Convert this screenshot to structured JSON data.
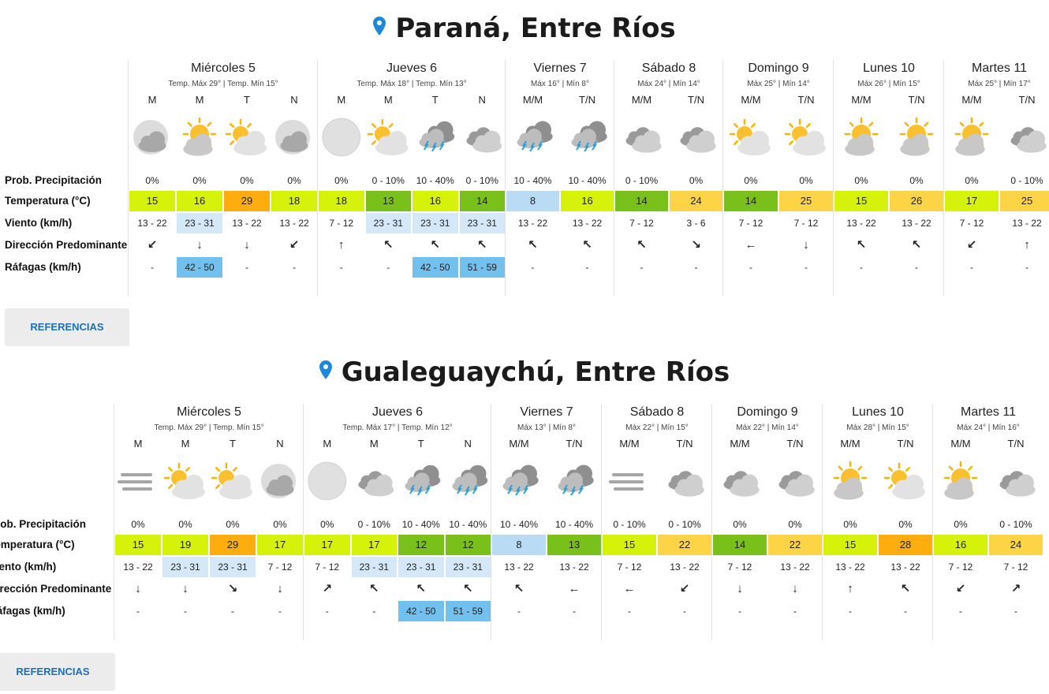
{
  "colors": {
    "pin": "#1e88d8",
    "temp_cool": "#b9dcf4",
    "temp_mild_green": "#7ac01a",
    "temp_lime": "#d6f20a",
    "temp_warm": "#fdd445",
    "temp_hot": "#fdae0e",
    "wind_highlight": "#d4e8f8",
    "gust_highlight": "#72c0ee"
  },
  "labels": {
    "prob": "Prob. Precipitación",
    "temp": "Temperatura (°C)",
    "wind": "Viento (km/h)",
    "dir": "Dirección Predominante",
    "gust": "Ráfagas (km/h)"
  },
  "sections": [
    {
      "title": "Paraná, Entre Ríos",
      "references_label": "REFERENCIAS",
      "days": [
        {
          "name": "Miércoles 5",
          "sub": "Temp. Máx 29° | Temp. Mín 15°",
          "cols": [
            {
              "p": "M",
              "icon": "cloudy-night-icon",
              "prob": "0%",
              "temp": "15",
              "tc": "lime",
              "wind": "13 - 22",
              "wh": false,
              "dir": "↙",
              "gust": "-",
              "gh": false
            },
            {
              "p": "M",
              "icon": "partly-sunny-icon",
              "prob": "0%",
              "temp": "16",
              "tc": "lime",
              "wind": "23 - 31",
              "wh": true,
              "dir": "↓",
              "gust": "42 - 50",
              "gh": true
            },
            {
              "p": "T",
              "icon": "partly-cloudy-icon",
              "prob": "0%",
              "temp": "29",
              "tc": "hot",
              "wind": "13 - 22",
              "wh": false,
              "dir": "↓",
              "gust": "-",
              "gh": false
            },
            {
              "p": "N",
              "icon": "cloudy-night-icon",
              "prob": "0%",
              "temp": "18",
              "tc": "lime",
              "wind": "13 - 22",
              "wh": false,
              "dir": "↙",
              "gust": "-",
              "gh": false
            }
          ]
        },
        {
          "name": "Jueves 6",
          "sub": "Temp. Máx 18° | Temp. Mín 13°",
          "cols": [
            {
              "p": "M",
              "icon": "moon-icon",
              "prob": "0%",
              "temp": "18",
              "tc": "lime",
              "wind": "7 - 12",
              "wh": false,
              "dir": "↑",
              "gust": "-",
              "gh": false
            },
            {
              "p": "M",
              "icon": "partly-cloudy-icon",
              "prob": "0 - 10%",
              "temp": "13",
              "tc": "green",
              "wind": "23 - 31",
              "wh": true,
              "dir": "↖",
              "gust": "-",
              "gh": false
            },
            {
              "p": "T",
              "icon": "storm-icon",
              "prob": "10 - 40%",
              "temp": "16",
              "tc": "lime",
              "wind": "23 - 31",
              "wh": true,
              "dir": "↖",
              "gust": "42 - 50",
              "gh": true
            },
            {
              "p": "N",
              "icon": "cloudy-icon",
              "prob": "0 - 10%",
              "temp": "14",
              "tc": "green",
              "wind": "23 - 31",
              "wh": true,
              "dir": "↖",
              "gust": "51 - 59",
              "gh": true
            }
          ]
        },
        {
          "name": "Viernes 7",
          "sub": "Máx 16° | Mín 8°",
          "cols": [
            {
              "p": "M/M",
              "icon": "storm-icon",
              "prob": "10 - 40%",
              "temp": "8",
              "tc": "cool",
              "wind": "13 - 22",
              "wh": false,
              "dir": "↖",
              "gust": "-",
              "gh": false
            },
            {
              "p": "T/N",
              "icon": "storm-icon",
              "prob": "10 - 40%",
              "temp": "16",
              "tc": "lime",
              "wind": "13 - 22",
              "wh": false,
              "dir": "↖",
              "gust": "-",
              "gh": false
            }
          ]
        },
        {
          "name": "Sábado 8",
          "sub": "Máx 24° | Mín 14°",
          "cols": [
            {
              "p": "M/M",
              "icon": "cloudy-icon",
              "prob": "0 - 10%",
              "temp": "14",
              "tc": "green",
              "wind": "7 - 12",
              "wh": false,
              "dir": "↖",
              "gust": "-",
              "gh": false
            },
            {
              "p": "T/N",
              "icon": "cloudy-icon",
              "prob": "0%",
              "temp": "24",
              "tc": "warm",
              "wind": "3 - 6",
              "wh": false,
              "dir": "↘",
              "gust": "-",
              "gh": false
            }
          ]
        },
        {
          "name": "Domingo 9",
          "sub": "Máx 25° | Mín 14°",
          "cols": [
            {
              "p": "M/M",
              "icon": "partly-cloudy-icon",
              "prob": "0%",
              "temp": "14",
              "tc": "green",
              "wind": "7 - 12",
              "wh": false,
              "dir": "←",
              "gust": "-",
              "gh": false
            },
            {
              "p": "T/N",
              "icon": "partly-cloudy-icon",
              "prob": "0%",
              "temp": "25",
              "tc": "warm",
              "wind": "7 - 12",
              "wh": false,
              "dir": "↓",
              "gust": "-",
              "gh": false
            }
          ]
        },
        {
          "name": "Lunes 10",
          "sub": "Máx 26° | Mín 15°",
          "cols": [
            {
              "p": "M/M",
              "icon": "partly-sunny-icon",
              "prob": "0%",
              "temp": "15",
              "tc": "lime",
              "wind": "13 - 22",
              "wh": false,
              "dir": "↖",
              "gust": "-",
              "gh": false
            },
            {
              "p": "T/N",
              "icon": "partly-sunny-icon",
              "prob": "0%",
              "temp": "26",
              "tc": "warm",
              "wind": "13 - 22",
              "wh": false,
              "dir": "↖",
              "gust": "-",
              "gh": false
            }
          ]
        },
        {
          "name": "Martes 11",
          "sub": "Máx 25° | Mín 17°",
          "cols": [
            {
              "p": "M/M",
              "icon": "partly-sunny-icon",
              "prob": "0%",
              "temp": "17",
              "tc": "lime",
              "wind": "7 - 12",
              "wh": false,
              "dir": "↙",
              "gust": "-",
              "gh": false
            },
            {
              "p": "T/N",
              "icon": "cloudy-icon",
              "prob": "0 - 10%",
              "temp": "25",
              "tc": "warm",
              "wind": "13 - 22",
              "wh": false,
              "dir": "↑",
              "gust": "-",
              "gh": false
            }
          ]
        }
      ]
    },
    {
      "title": "Gualeguaychú, Entre Ríos",
      "references_label": "REFERENCIAS",
      "days": [
        {
          "name": "Miércoles 5",
          "sub": "Temp. Máx 29° | Temp. Mín 15°",
          "cols": [
            {
              "p": "M",
              "icon": "fog-icon",
              "prob": "0%",
              "temp": "15",
              "tc": "lime",
              "wind": "13 - 22",
              "wh": false,
              "dir": "↓",
              "gust": "-",
              "gh": false
            },
            {
              "p": "M",
              "icon": "partly-cloudy-icon",
              "prob": "0%",
              "temp": "19",
              "tc": "lime",
              "wind": "23 - 31",
              "wh": true,
              "dir": "↓",
              "gust": "-",
              "gh": false
            },
            {
              "p": "T",
              "icon": "partly-cloudy-icon",
              "prob": "0%",
              "temp": "29",
              "tc": "hot",
              "wind": "23 - 31",
              "wh": true,
              "dir": "↘",
              "gust": "-",
              "gh": false
            },
            {
              "p": "N",
              "icon": "cloudy-night-icon",
              "prob": "0%",
              "temp": "17",
              "tc": "lime",
              "wind": "7 - 12",
              "wh": false,
              "dir": "↓",
              "gust": "-",
              "gh": false
            }
          ]
        },
        {
          "name": "Jueves 6",
          "sub": "Temp. Máx 17° | Temp. Mín 12°",
          "cols": [
            {
              "p": "M",
              "icon": "moon-icon",
              "prob": "0%",
              "temp": "17",
              "tc": "lime",
              "wind": "7 - 12",
              "wh": false,
              "dir": "↗",
              "gust": "-",
              "gh": false
            },
            {
              "p": "M",
              "icon": "cloudy-icon",
              "prob": "0 - 10%",
              "temp": "17",
              "tc": "lime",
              "wind": "23 - 31",
              "wh": true,
              "dir": "↖",
              "gust": "-",
              "gh": false
            },
            {
              "p": "T",
              "icon": "storm-icon",
              "prob": "10 - 40%",
              "temp": "12",
              "tc": "green",
              "wind": "23 - 31",
              "wh": true,
              "dir": "↖",
              "gust": "42 - 50",
              "gh": true
            },
            {
              "p": "N",
              "icon": "storm-icon",
              "prob": "10 - 40%",
              "temp": "12",
              "tc": "green",
              "wind": "23 - 31",
              "wh": true,
              "dir": "↖",
              "gust": "51 - 59",
              "gh": true
            }
          ]
        },
        {
          "name": "Viernes 7",
          "sub": "Máx 13° | Mín 8°",
          "cols": [
            {
              "p": "M/M",
              "icon": "storm-icon",
              "prob": "10 - 40%",
              "temp": "8",
              "tc": "cool",
              "wind": "13 - 22",
              "wh": false,
              "dir": "↖",
              "gust": "-",
              "gh": false
            },
            {
              "p": "T/N",
              "icon": "storm-icon",
              "prob": "10 - 40%",
              "temp": "13",
              "tc": "green",
              "wind": "13 - 22",
              "wh": false,
              "dir": "←",
              "gust": "-",
              "gh": false
            }
          ]
        },
        {
          "name": "Sábado 8",
          "sub": "Máx 22° | Mín 15°",
          "cols": [
            {
              "p": "M/M",
              "icon": "fog-icon",
              "prob": "0 - 10%",
              "temp": "15",
              "tc": "lime",
              "wind": "7 - 12",
              "wh": false,
              "dir": "←",
              "gust": "-",
              "gh": false
            },
            {
              "p": "T/N",
              "icon": "cloudy-icon",
              "prob": "0 - 10%",
              "temp": "22",
              "tc": "warm",
              "wind": "13 - 22",
              "wh": false,
              "dir": "↙",
              "gust": "-",
              "gh": false
            }
          ]
        },
        {
          "name": "Domingo 9",
          "sub": "Máx 22° | Mín 14°",
          "cols": [
            {
              "p": "M/M",
              "icon": "cloudy-icon",
              "prob": "0%",
              "temp": "14",
              "tc": "green",
              "wind": "7 - 12",
              "wh": false,
              "dir": "↓",
              "gust": "-",
              "gh": false
            },
            {
              "p": "T/N",
              "icon": "cloudy-icon",
              "prob": "0%",
              "temp": "22",
              "tc": "warm",
              "wind": "13 - 22",
              "wh": false,
              "dir": "↓",
              "gust": "-",
              "gh": false
            }
          ]
        },
        {
          "name": "Lunes 10",
          "sub": "Máx 28° | Mín 15°",
          "cols": [
            {
              "p": "M/M",
              "icon": "partly-sunny-icon",
              "prob": "0%",
              "temp": "15",
              "tc": "lime",
              "wind": "13 - 22",
              "wh": false,
              "dir": "↑",
              "gust": "-",
              "gh": false
            },
            {
              "p": "T/N",
              "icon": "partly-cloudy-icon",
              "prob": "0%",
              "temp": "28",
              "tc": "hot",
              "wind": "13 - 22",
              "wh": false,
              "dir": "↖",
              "gust": "-",
              "gh": false
            }
          ]
        },
        {
          "name": "Martes 11",
          "sub": "Máx 24° | Mín 16°",
          "cols": [
            {
              "p": "M/M",
              "icon": "partly-sunny-icon",
              "prob": "0%",
              "temp": "16",
              "tc": "lime",
              "wind": "7 - 12",
              "wh": false,
              "dir": "↙",
              "gust": "-",
              "gh": false
            },
            {
              "p": "T/N",
              "icon": "cloudy-icon",
              "prob": "0 - 10%",
              "temp": "24",
              "tc": "warm",
              "wind": "7 - 12",
              "wh": false,
              "dir": "↗",
              "gust": "-",
              "gh": false
            }
          ]
        }
      ]
    }
  ]
}
